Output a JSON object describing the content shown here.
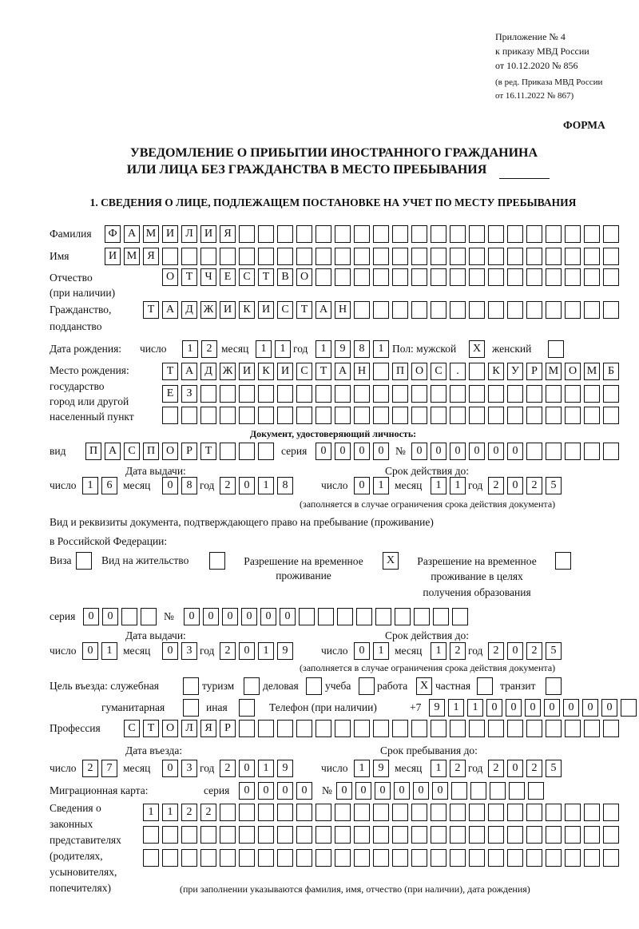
{
  "header": {
    "annex_line1": "Приложение № 4",
    "annex_line2": "к приказу МВД России",
    "annex_line3": "от 10.12.2020 № 856",
    "annex_line4": "(в ред. Приказа МВД России",
    "annex_line5": "от 16.11.2022 № 867)",
    "form_label": "ФОРМА",
    "title_line1": "УВЕДОМЛЕНИЕ О ПРИБЫТИИ ИНОСТРАННОГО ГРАЖДАНИНА",
    "title_line2": "ИЛИ ЛИЦА БЕЗ ГРАЖДАНСТВА В МЕСТО ПРЕБЫВАНИЯ",
    "section1": "1. СВЕДЕНИЯ О ЛИЦЕ, ПОДЛЕЖАЩЕМ ПОСТАНОВКЕ НА УЧЕТ ПО МЕСТУ ПРЕБЫВАНИЯ"
  },
  "labels": {
    "surname": "Фамилия",
    "name": "Имя",
    "patronymic": "Отчество",
    "patronymic_note": "(при наличии)",
    "citizenship": "Гражданство,",
    "citizenship2": "подданство",
    "birth_date": "Дата рождения:",
    "day": "число",
    "month": "месяц",
    "year": "год",
    "sex": "Пол: мужской",
    "female": "женский",
    "birthplace1": "Место рождения:",
    "birthplace2": "государство",
    "birthplace3": "город или другой",
    "birthplace4": "населенный пункт",
    "id_doc": "Документ, удостоверяющий личность:",
    "kind": "вид",
    "series": "серия",
    "number": "№",
    "issue_date": "Дата выдачи:",
    "valid_until": "Срок действия до:",
    "validity_note": "(заполняется в случае ограничения срока действия документа)",
    "right_doc1": "Вид и реквизиты документа, подтверждающего право на пребывание (проживание)",
    "right_doc2": "в Российской Федерации:",
    "visa": "Виза",
    "residence_permit": "Вид на жительство",
    "temp_permit1": "Разрешение на временное",
    "temp_permit2": "проживание",
    "edu_permit1": "Разрешение на временное",
    "edu_permit2": "проживание в целях",
    "edu_permit3": "получения образования",
    "purpose": "Цель въезда: служебная",
    "tourism": "туризм",
    "business": "деловая",
    "study": "учеба",
    "work": "работа",
    "private": "частная",
    "transit": "транзит",
    "humanitarian": "гуманитарная",
    "other": "иная",
    "phone": "Телефон (при наличии)",
    "phone_prefix": "+7",
    "profession": "Профессия",
    "entry_date": "Дата въезда:",
    "stay_until": "Срок пребывания до:",
    "migration_card": "Миграционная карта:",
    "reps1": "Сведения о",
    "reps2": "законных",
    "reps3": "представителях",
    "reps4": "(родителях,",
    "reps5": "усыновителях,",
    "reps6": "попечителях)",
    "reps_note": "(при заполнении указываются фамилия, имя, отчество (при наличии), дата рождения)"
  },
  "fields": {
    "surname": [
      "Ф",
      "А",
      "М",
      "И",
      "Л",
      "И",
      "Я"
    ],
    "name": [
      "И",
      "М",
      "Я"
    ],
    "patronymic": [
      "О",
      "Т",
      "Ч",
      "Е",
      "С",
      "Т",
      "В",
      "О"
    ],
    "citizenship": [
      "Т",
      "А",
      "Д",
      "Ж",
      "И",
      "К",
      "И",
      "С",
      "Т",
      "А",
      "Н"
    ],
    "birth_day": [
      "1",
      "2"
    ],
    "birth_month": [
      "1",
      "1"
    ],
    "birth_year": [
      "1",
      "9",
      "8",
      "1"
    ],
    "sex_male": [
      "X"
    ],
    "sex_female": [
      ""
    ],
    "birthplace_row1": [
      "Т",
      "А",
      "Д",
      "Ж",
      "И",
      "К",
      "И",
      "С",
      "Т",
      "А",
      "Н",
      "",
      "П",
      "О",
      "С",
      ".",
      "",
      "К",
      "У",
      "Р",
      "М",
      "О",
      "М",
      "Б"
    ],
    "birthplace_row2": [
      "Е",
      "З"
    ],
    "birthplace_row3": [],
    "id_kind": [
      "П",
      "А",
      "С",
      "П",
      "О",
      "Р",
      "Т"
    ],
    "id_series": [
      "0",
      "0",
      "0",
      "0"
    ],
    "id_number": [
      "0",
      "0",
      "0",
      "0",
      "0",
      "0"
    ],
    "id_issue_day": [
      "1",
      "6"
    ],
    "id_issue_month": [
      "0",
      "8"
    ],
    "id_issue_year": [
      "2",
      "0",
      "1",
      "8"
    ],
    "id_valid_day": [
      "0",
      "1"
    ],
    "id_valid_month": [
      "1",
      "1"
    ],
    "id_valid_year": [
      "2",
      "0",
      "2",
      "5"
    ],
    "right_visa": [
      ""
    ],
    "right_residence": [
      ""
    ],
    "right_temp": [
      "X"
    ],
    "right_edu": [
      ""
    ],
    "right_series": [
      "0",
      "0"
    ],
    "right_number": [
      "0",
      "0",
      "0",
      "0",
      "0",
      "0"
    ],
    "right_issue_day": [
      "0",
      "1"
    ],
    "right_issue_month": [
      "0",
      "3"
    ],
    "right_issue_year": [
      "2",
      "0",
      "1",
      "9"
    ],
    "right_valid_day": [
      "0",
      "1"
    ],
    "right_valid_month": [
      "1",
      "2"
    ],
    "right_valid_year": [
      "2",
      "0",
      "2",
      "5"
    ],
    "purpose_service": [
      ""
    ],
    "purpose_tourism": [
      ""
    ],
    "purpose_business": [
      ""
    ],
    "purpose_study": [
      ""
    ],
    "purpose_work": [
      "X"
    ],
    "purpose_private": [
      ""
    ],
    "purpose_transit": [
      ""
    ],
    "purpose_humanitarian": [
      ""
    ],
    "purpose_other": [
      ""
    ],
    "phone": [
      "9",
      "1",
      "1",
      "0",
      "0",
      "0",
      "0",
      "0",
      "0",
      "0"
    ],
    "profession": [
      "С",
      "Т",
      "О",
      "Л",
      "Я",
      "Р"
    ],
    "entry_day": [
      "2",
      "7"
    ],
    "entry_month": [
      "0",
      "3"
    ],
    "entry_year": [
      "2",
      "0",
      "1",
      "9"
    ],
    "stay_day": [
      "1",
      "9"
    ],
    "stay_month": [
      "1",
      "2"
    ],
    "stay_year": [
      "2",
      "0",
      "2",
      "5"
    ],
    "mc_series": [
      "0",
      "0",
      "0",
      "0"
    ],
    "mc_number": [
      "0",
      "0",
      "0",
      "0",
      "0",
      "0"
    ],
    "reps_row1": [
      "1",
      "1",
      "2",
      "2"
    ],
    "reps_row2": [],
    "reps_row3": []
  }
}
